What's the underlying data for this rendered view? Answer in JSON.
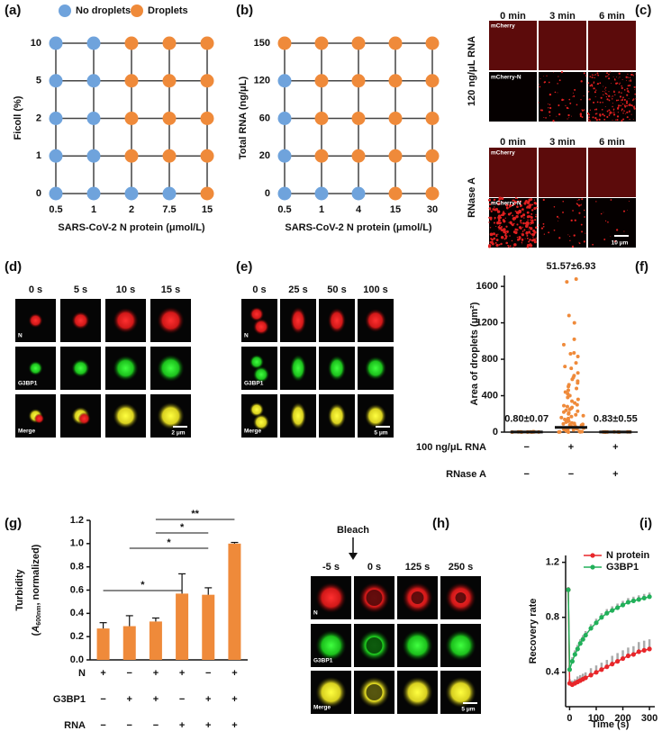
{
  "chart_data": [
    {
      "type": "phase",
      "label": "(a)",
      "series": [
        {
          "name": "No droplets",
          "color": "#6fa3dc"
        },
        {
          "name": "Droplets",
          "color": "#ef8a3a"
        }
      ],
      "x_categories": [
        "0.5",
        "1",
        "2",
        "7.5",
        "15"
      ],
      "y_categories": [
        "0",
        "1",
        "2",
        "5",
        "10"
      ],
      "states": [
        [
          0,
          0,
          0,
          0,
          1
        ],
        [
          0,
          0,
          1,
          1,
          1
        ],
        [
          0,
          0,
          1,
          1,
          1
        ],
        [
          0,
          0,
          1,
          1,
          1
        ],
        [
          0,
          0,
          1,
          1,
          1
        ]
      ],
      "x_label": "SARS-CoV-2 N protein (μmol/L)",
      "y_label": "Ficoll (%)"
    },
    {
      "type": "phase",
      "label": "(b)",
      "x_categories": [
        "0.5",
        "1",
        "4",
        "15",
        "30"
      ],
      "y_categories": [
        "0",
        "20",
        "60",
        "120",
        "150"
      ],
      "states": [
        [
          0,
          0,
          0,
          1,
          1
        ],
        [
          0,
          1,
          1,
          1,
          1
        ],
        [
          0,
          1,
          1,
          1,
          1
        ],
        [
          0,
          1,
          1,
          1,
          1
        ],
        [
          1,
          1,
          1,
          1,
          1
        ]
      ],
      "x_label": "SARS-CoV-2 N protein (μmol/L)",
      "y_label": "Total RNA (ng/μL)"
    },
    {
      "type": "strip",
      "label": "(f)",
      "color": "#ef8a3a",
      "values": [
        0.8,
        51.57,
        0.83
      ],
      "errors": [
        0.07,
        6.93,
        0.55
      ],
      "value_labels": [
        "0.80±0.07",
        "51.57±6.93",
        "0.83±0.55"
      ],
      "points": [
        [
          0,
          1,
          2,
          3,
          5,
          1,
          0,
          2,
          4,
          1,
          0,
          3
        ],
        [
          1680,
          1650,
          1280,
          1200,
          1020,
          960,
          870,
          860,
          830,
          760,
          720,
          700,
          650,
          620,
          600,
          580,
          560,
          540,
          520,
          500,
          480,
          460,
          440,
          420,
          400,
          380,
          360,
          340,
          320,
          300,
          290,
          280,
          270,
          260,
          250,
          240,
          230,
          220,
          210,
          200,
          190,
          180,
          170,
          160,
          150,
          140,
          130,
          120,
          110,
          100,
          95,
          90,
          85,
          80,
          75,
          70,
          65,
          60,
          55,
          50,
          45,
          40,
          35,
          30,
          25,
          20,
          15,
          10,
          8,
          5,
          3,
          2,
          1,
          0
        ],
        [
          0,
          1,
          2,
          1,
          0,
          3,
          2,
          1,
          0,
          2
        ]
      ],
      "ylim": [
        0,
        1720
      ],
      "yticks": [
        0,
        400,
        800,
        1200,
        1600
      ],
      "y_label": "Area of droplets (μm²)",
      "conditions": [
        {
          "label": "100 ng/μL RNA",
          "signs": [
            "−",
            "+",
            "+"
          ]
        },
        {
          "label": "RNase A",
          "signs": [
            "−",
            "−",
            "+"
          ]
        }
      ]
    },
    {
      "type": "bar",
      "label": "(g)",
      "color": "#ef8a3a",
      "values": [
        0.27,
        0.29,
        0.33,
        0.57,
        0.56,
        1.0
      ],
      "errors": [
        0.05,
        0.09,
        0.03,
        0.17,
        0.06,
        0.01
      ],
      "ylim": [
        0,
        1.2
      ],
      "yticks": [
        {
          "value": 0,
          "label": "0.0"
        },
        {
          "value": 0.2,
          "label": "0.2"
        },
        {
          "value": 0.4,
          "label": "0.4"
        },
        {
          "value": 0.6,
          "label": "0.6"
        },
        {
          "value": 0.8,
          "label": "0.8"
        },
        {
          "value": 1.0,
          "label": "1.0"
        },
        {
          "value": 1.2,
          "label": "1.2"
        }
      ],
      "y_label": "Turbidity",
      "y_label_parts": [
        "(",
        "A",
        "600nm",
        ", normalized)"
      ],
      "brackets": [
        {
          "from": 0,
          "to": 3,
          "label": "*"
        },
        {
          "from": 1,
          "to": 4,
          "label": "*"
        },
        {
          "from": 2,
          "to": 4,
          "label": "*"
        },
        {
          "from": 2,
          "to": 5,
          "label": "**"
        }
      ],
      "conditions": [
        {
          "label": "N",
          "signs": [
            "+",
            "−",
            "+",
            "+",
            "−",
            "+"
          ]
        },
        {
          "label": "G3BP1",
          "signs": [
            "−",
            "+",
            "+",
            "−",
            "+",
            "+"
          ]
        },
        {
          "label": "RNA",
          "signs": [
            "−",
            "−",
            "−",
            "+",
            "+",
            "+"
          ]
        }
      ]
    },
    {
      "type": "line",
      "label": "(i)",
      "x": [
        -5,
        0,
        10,
        20,
        30,
        40,
        50,
        60,
        80,
        100,
        120,
        140,
        160,
        180,
        200,
        220,
        240,
        260,
        280,
        300
      ],
      "series": [
        {
          "name": "N protein",
          "color": "#e8262a",
          "values": [
            1.0,
            0.32,
            0.31,
            0.32,
            0.33,
            0.34,
            0.35,
            0.36,
            0.38,
            0.4,
            0.42,
            0.44,
            0.46,
            0.48,
            0.5,
            0.52,
            0.53,
            0.55,
            0.56,
            0.57
          ],
          "errors": [
            0.02,
            0.03,
            0.03,
            0.03,
            0.04,
            0.04,
            0.04,
            0.04,
            0.05,
            0.05,
            0.05,
            0.05,
            0.06,
            0.06,
            0.06,
            0.06,
            0.06,
            0.07,
            0.07,
            0.07
          ]
        },
        {
          "name": "G3BP1",
          "color": "#22b05a",
          "values": [
            1.0,
            0.42,
            0.48,
            0.53,
            0.57,
            0.61,
            0.64,
            0.67,
            0.72,
            0.76,
            0.8,
            0.83,
            0.85,
            0.87,
            0.89,
            0.91,
            0.92,
            0.93,
            0.94,
            0.95
          ],
          "errors": [
            0.02,
            0.03,
            0.03,
            0.03,
            0.03,
            0.03,
            0.03,
            0.03,
            0.03,
            0.03,
            0.03,
            0.03,
            0.03,
            0.03,
            0.03,
            0.03,
            0.03,
            0.03,
            0.03,
            0.03
          ]
        }
      ],
      "xlim": [
        -15,
        320
      ],
      "xticks": [
        0,
        100,
        200,
        300
      ],
      "ylim": [
        0.15,
        1.25
      ],
      "yticks": [
        {
          "value": 0.4,
          "label": "0.4"
        },
        {
          "value": 0.8,
          "label": "0.8"
        },
        {
          "value": 1.2,
          "label": "1.2"
        }
      ],
      "x_label": "Time (s)",
      "y_label": "Recovery rate"
    }
  ],
  "image_panels": [
    {
      "label": "(c)",
      "columns": [
        "0 min",
        "3 min",
        "6 min"
      ],
      "groups": [
        {
          "title": "120 ng/μL RNA",
          "rows": [
            "mCherry",
            "mCherry-N"
          ]
        },
        {
          "title": "RNase A",
          "rows": [
            "mCherry",
            "mCherry-N"
          ]
        }
      ],
      "scale_bar": "10 μm"
    },
    {
      "label": "(d)",
      "columns": [
        "0 s",
        "5 s",
        "10 s",
        "15 s"
      ],
      "rows": [
        "N",
        "G3BP1",
        "Merge"
      ],
      "scale_bar": "2 μm"
    },
    {
      "label": "(e)",
      "columns": [
        "0 s",
        "25 s",
        "50 s",
        "100 s"
      ],
      "rows": [
        "N",
        "G3BP1",
        "Merge"
      ],
      "scale_bar": "5 μm"
    },
    {
      "label": "(h)",
      "marker": "Bleach",
      "columns": [
        "-5 s",
        "0 s",
        "125 s",
        "250 s"
      ],
      "rows": [
        "N",
        "G3BP1",
        "Merge"
      ],
      "scale_bar": "5 μm"
    }
  ]
}
